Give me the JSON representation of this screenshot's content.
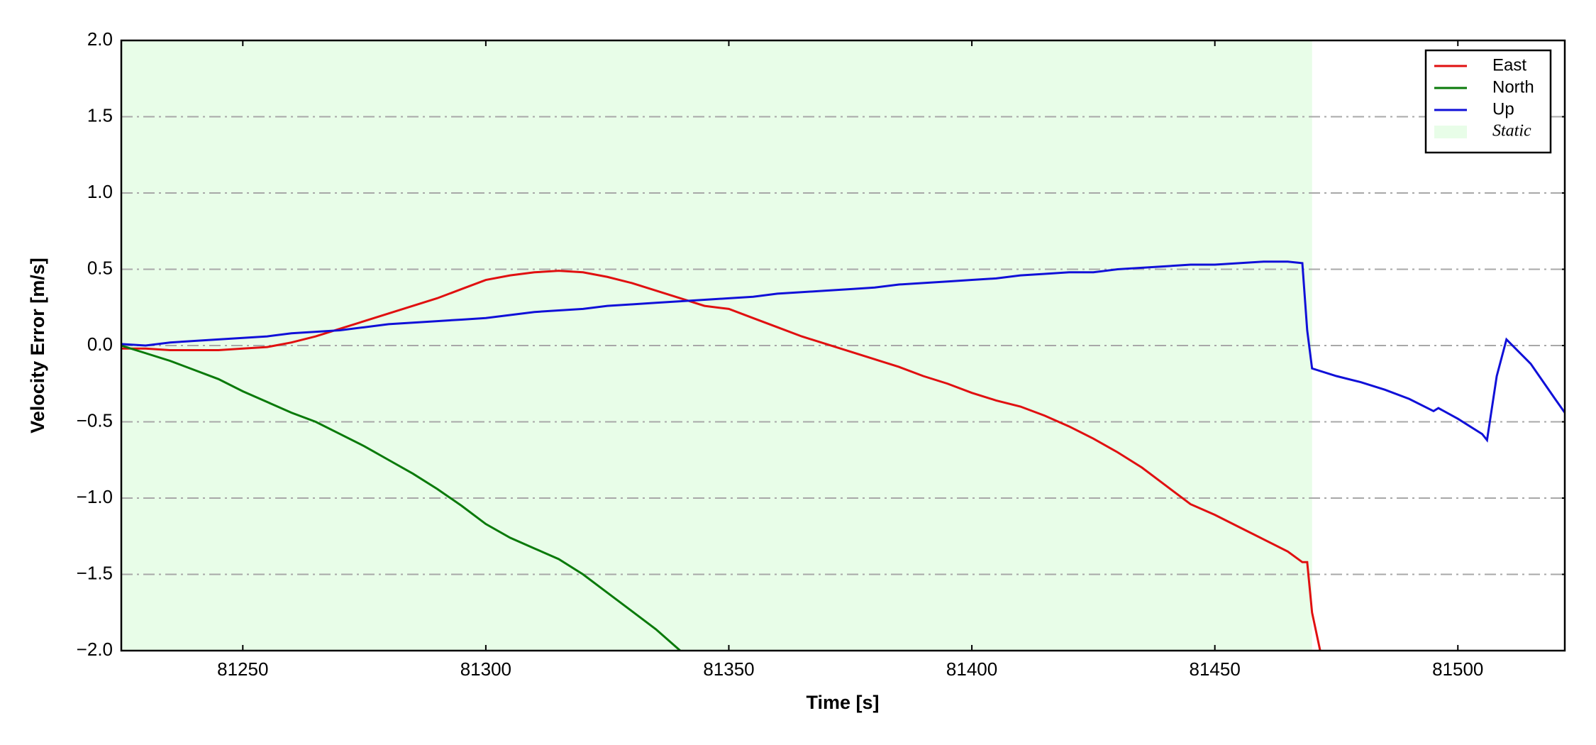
{
  "chart_data": {
    "type": "line",
    "xlabel": "Time [s]",
    "ylabel": "Velocity Error [m/s]",
    "xlim": [
      81225,
      81522
    ],
    "ylim": [
      -2,
      2
    ],
    "xticks": [
      81250,
      81300,
      81350,
      81400,
      81450,
      81500
    ],
    "yticks": [
      {
        "value": -2,
        "label": "−2.0"
      },
      {
        "value": -1.5,
        "label": "−1.5"
      },
      {
        "value": -1,
        "label": "−1.0"
      },
      {
        "value": -0.5,
        "label": "−0.5"
      },
      {
        "value": 0,
        "label": "0.0"
      },
      {
        "value": 0.5,
        "label": "0.5"
      },
      {
        "value": 1,
        "label": "1.0"
      },
      {
        "value": 1.5,
        "label": "1.5"
      },
      {
        "value": 2,
        "label": "2.0"
      }
    ],
    "grid": true,
    "legend": "upper right",
    "span": {
      "name": "Static",
      "color": "#e8fde8",
      "x": [
        81225,
        81470
      ]
    },
    "series": [
      {
        "name": "East",
        "color": "#e01010",
        "x": [
          81225,
          81230,
          81235,
          81240,
          81245,
          81250,
          81255,
          81260,
          81265,
          81270,
          81275,
          81280,
          81285,
          81290,
          81295,
          81300,
          81305,
          81310,
          81315,
          81320,
          81325,
          81330,
          81335,
          81340,
          81345,
          81350,
          81355,
          81360,
          81365,
          81370,
          81375,
          81380,
          81385,
          81390,
          81395,
          81400,
          81405,
          81410,
          81415,
          81420,
          81425,
          81430,
          81435,
          81440,
          81445,
          81450,
          81455,
          81460,
          81465,
          81468,
          81469,
          81470,
          81472
        ],
        "values": [
          -0.02,
          -0.02,
          -0.03,
          -0.03,
          -0.03,
          -0.02,
          -0.01,
          0.02,
          0.06,
          0.11,
          0.16,
          0.21,
          0.26,
          0.31,
          0.37,
          0.43,
          0.46,
          0.48,
          0.49,
          0.48,
          0.45,
          0.41,
          0.36,
          0.31,
          0.26,
          0.24,
          0.18,
          0.12,
          0.06,
          0.01,
          -0.04,
          -0.09,
          -0.14,
          -0.2,
          -0.25,
          -0.31,
          -0.36,
          -0.4,
          -0.46,
          -0.53,
          -0.61,
          -0.7,
          -0.8,
          -0.92,
          -1.04,
          -1.11,
          -1.19,
          -1.27,
          -1.35,
          -1.42,
          -1.42,
          -1.75,
          -2.05
        ]
      },
      {
        "name": "North",
        "color": "#0a7a0a",
        "x": [
          81225,
          81230,
          81235,
          81240,
          81245,
          81250,
          81255,
          81260,
          81265,
          81270,
          81275,
          81280,
          81285,
          81290,
          81295,
          81300,
          81305,
          81310,
          81315,
          81320,
          81325,
          81330,
          81335,
          81340
        ],
        "values": [
          0.0,
          -0.05,
          -0.1,
          -0.16,
          -0.22,
          -0.3,
          -0.37,
          -0.44,
          -0.5,
          -0.58,
          -0.66,
          -0.75,
          -0.84,
          -0.94,
          -1.05,
          -1.17,
          -1.26,
          -1.33,
          -1.4,
          -1.5,
          -1.62,
          -1.74,
          -1.86,
          -2.0
        ]
      },
      {
        "name": "Up",
        "color": "#1010d8",
        "x": [
          81225,
          81230,
          81235,
          81240,
          81245,
          81250,
          81255,
          81260,
          81265,
          81270,
          81275,
          81280,
          81285,
          81290,
          81295,
          81300,
          81305,
          81310,
          81315,
          81320,
          81325,
          81330,
          81335,
          81340,
          81345,
          81350,
          81355,
          81360,
          81365,
          81370,
          81375,
          81380,
          81385,
          81390,
          81395,
          81400,
          81405,
          81410,
          81415,
          81420,
          81425,
          81430,
          81435,
          81440,
          81445,
          81450,
          81455,
          81460,
          81465,
          81468,
          81469,
          81470,
          81475,
          81480,
          81485,
          81490,
          81495,
          81496,
          81500,
          81505,
          81506,
          81508,
          81510,
          81515,
          81520,
          81522
        ],
        "values": [
          0.01,
          0.0,
          0.02,
          0.03,
          0.04,
          0.05,
          0.06,
          0.08,
          0.09,
          0.1,
          0.12,
          0.14,
          0.15,
          0.16,
          0.17,
          0.18,
          0.2,
          0.22,
          0.23,
          0.24,
          0.26,
          0.27,
          0.28,
          0.29,
          0.3,
          0.31,
          0.32,
          0.34,
          0.35,
          0.36,
          0.37,
          0.38,
          0.4,
          0.41,
          0.42,
          0.43,
          0.44,
          0.46,
          0.47,
          0.48,
          0.48,
          0.5,
          0.51,
          0.52,
          0.53,
          0.53,
          0.54,
          0.55,
          0.55,
          0.54,
          0.1,
          -0.15,
          -0.2,
          -0.24,
          -0.29,
          -0.35,
          -0.43,
          -0.41,
          -0.48,
          -0.58,
          -0.62,
          -0.2,
          0.04,
          -0.12,
          -0.35,
          -0.44
        ]
      }
    ]
  }
}
